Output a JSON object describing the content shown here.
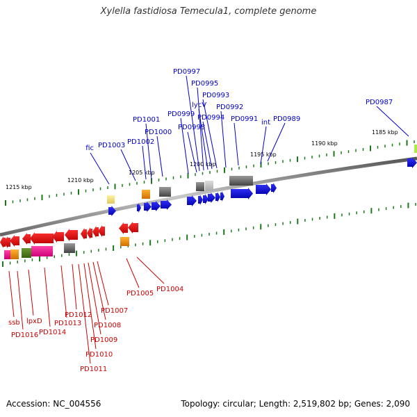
{
  "title": "Xylella fastidiosa Temecula1, complete genome",
  "footer": {
    "accession": "Accession: NC_004556",
    "summary": "Topology: circular; Length: 2,519,802 bp; Genes: 2,090"
  },
  "colors": {
    "forward_label": "#0000cc",
    "reverse_label": "#cc0000",
    "forward_gene": "#0000ee",
    "reverse_gene": "#ee0000",
    "tick": "#1a7a1a",
    "backbone": "#808080"
  },
  "scale_ticks": [
    "1215 kbp",
    "1210 kbp",
    "1205 kbp",
    "1200 kbp",
    "1195 kbp",
    "1190 kbp",
    "1185 kbp"
  ],
  "forward_labels": [
    "fic",
    "PD1003",
    "PD1002",
    "PD1001",
    "PD1000",
    "PD0999",
    "PD0998",
    "PD0997",
    "PD0995",
    "lycV",
    "PD0994",
    "PD0993",
    "PD0992",
    "PD0991",
    "int",
    "PD0989",
    "PD0987"
  ],
  "reverse_labels": [
    "ssb",
    "PD1016",
    "lpxD",
    "PD1014",
    "PD1013",
    "PD1012",
    "PD1011",
    "PD1010",
    "PD1009",
    "PD1008",
    "PD1007",
    "PD1005",
    "PD1004"
  ]
}
